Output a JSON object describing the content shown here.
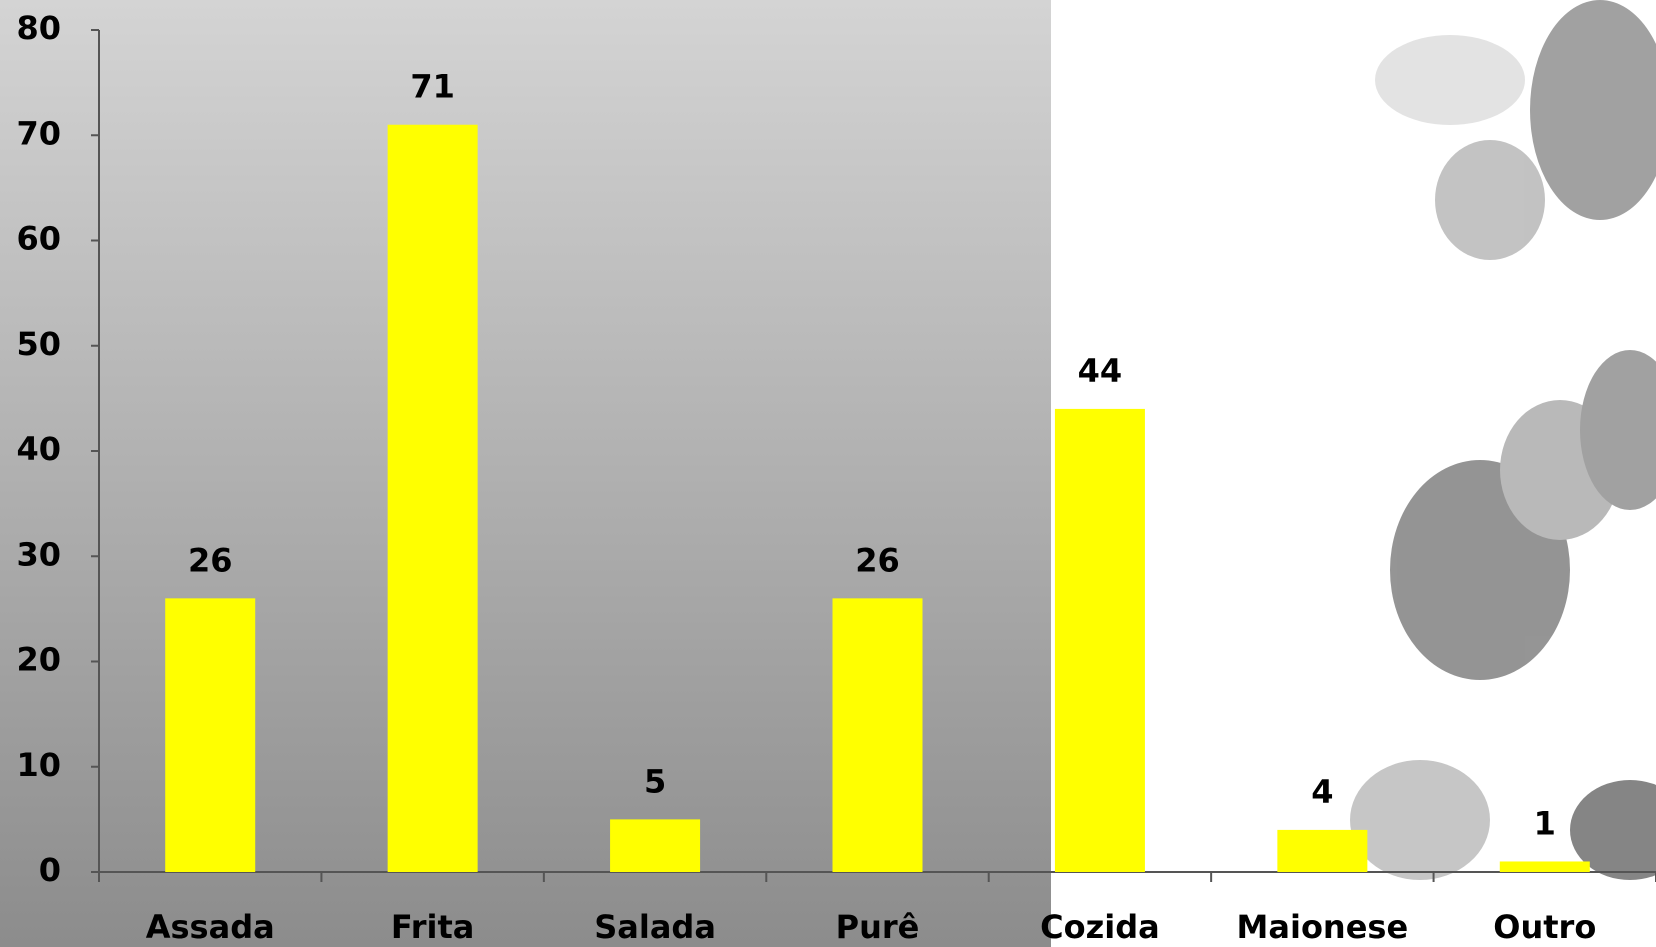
{
  "chart_data": {
    "type": "bar",
    "categories": [
      "Assada",
      "Frita",
      "Salada",
      "Purê",
      "Cozida",
      "Maionese",
      "Outro"
    ],
    "values": [
      26,
      71,
      5,
      26,
      44,
      4,
      1
    ],
    "color": "#ffff00",
    "ylim": [
      0,
      80
    ],
    "yticks": [
      0,
      10,
      20,
      30,
      40,
      50,
      60,
      70,
      80
    ]
  }
}
